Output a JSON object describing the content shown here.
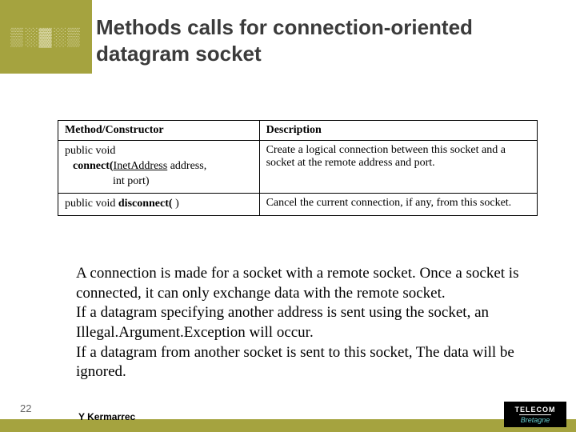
{
  "header": {
    "title_line1": "Methods calls for connection-oriented",
    "title_line2": "datagram socket",
    "ornament": "▒░▓░▒"
  },
  "table": {
    "columns": [
      "Method/Constructor",
      "Description"
    ],
    "rows": [
      {
        "method_l1": "public void",
        "method_l2_a": "connect(",
        "method_l2_b": "InetAddress",
        "method_l2_c": " address,",
        "method_l3": "int port)",
        "description": "Create a logical connection between this socket and a socket at the remote address and port."
      },
      {
        "method_l1": "public void ",
        "method_l2_a": "disconnect(",
        "method_l2_b": "",
        "method_l2_c": " )",
        "method_l3": "",
        "description": "Cancel the current connection, if any, from this socket."
      }
    ]
  },
  "body": {
    "text": "A connection is made for a socket with a remote socket. Once a socket is connected, it can only exchange data with the remote socket.\nIf a datagram specifying another address is sent using the socket, an Illegal.Argument.Exception will occur.\nIf a datagram from another socket is sent to this socket, The data will be ignored."
  },
  "footer": {
    "page": "22",
    "author": "Y Kermarrec",
    "logo_top": "TELECOM",
    "logo_bottom": "Bretagne"
  },
  "colors": {
    "olive": "#a5a33f",
    "title": "#3b3b3b"
  }
}
